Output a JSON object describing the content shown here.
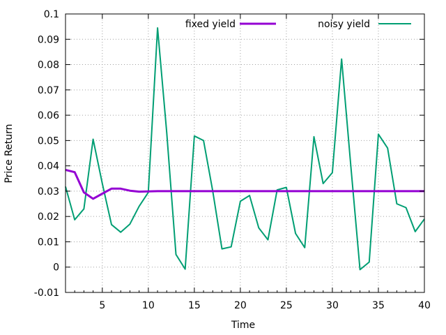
{
  "chart_data": {
    "type": "line",
    "title": "",
    "xlabel": "Time",
    "ylabel": "Price Return",
    "xlim": [
      1,
      40
    ],
    "ylim": [
      -0.01,
      0.1
    ],
    "x_ticks": [
      5,
      10,
      15,
      20,
      25,
      30,
      35,
      40
    ],
    "y_ticks": [
      -0.01,
      0,
      0.01,
      0.02,
      0.03,
      0.04,
      0.05,
      0.06,
      0.07,
      0.08,
      0.09,
      0.1
    ],
    "y_tick_labels": [
      "-0.01",
      "0",
      "0.01",
      "0.02",
      "0.03",
      "0.04",
      "0.05",
      "0.06",
      "0.07",
      "0.08",
      "0.09",
      "0.1"
    ],
    "grid": true,
    "legend_position": "top",
    "x": [
      1,
      2,
      3,
      4,
      5,
      6,
      7,
      8,
      9,
      10,
      11,
      12,
      13,
      14,
      15,
      16,
      17,
      18,
      19,
      20,
      21,
      22,
      23,
      24,
      25,
      26,
      27,
      28,
      29,
      30,
      31,
      32,
      33,
      34,
      35,
      36,
      37,
      38,
      39,
      40
    ],
    "series": [
      {
        "name": "fixed yield",
        "color": "#9400d3",
        "values": [
          0.0384,
          0.0375,
          0.0295,
          0.027,
          0.029,
          0.031,
          0.031,
          0.0302,
          0.0298,
          0.0299,
          0.03,
          0.03,
          0.03,
          0.03,
          0.03,
          0.03,
          0.03,
          0.03,
          0.03,
          0.03,
          0.03,
          0.03,
          0.03,
          0.03,
          0.03,
          0.03,
          0.03,
          0.03,
          0.03,
          0.03,
          0.03,
          0.03,
          0.03,
          0.03,
          0.03,
          0.03,
          0.03,
          0.03,
          0.03,
          0.03
        ]
      },
      {
        "name": "noisy yield",
        "color": "#009e73",
        "values": [
          0.0318,
          0.0187,
          0.023,
          0.0505,
          0.033,
          0.0168,
          0.0138,
          0.017,
          0.024,
          0.0295,
          0.0945,
          0.053,
          0.005,
          -0.0008,
          0.0518,
          0.05,
          0.03,
          0.0072,
          0.008,
          0.026,
          0.0283,
          0.0155,
          0.0108,
          0.0305,
          0.0315,
          0.0133,
          0.0077,
          0.0515,
          0.033,
          0.0373,
          0.0822,
          0.04,
          -0.001,
          0.002,
          0.0525,
          0.047,
          0.025,
          0.0235,
          0.014,
          0.019
        ]
      }
    ]
  }
}
